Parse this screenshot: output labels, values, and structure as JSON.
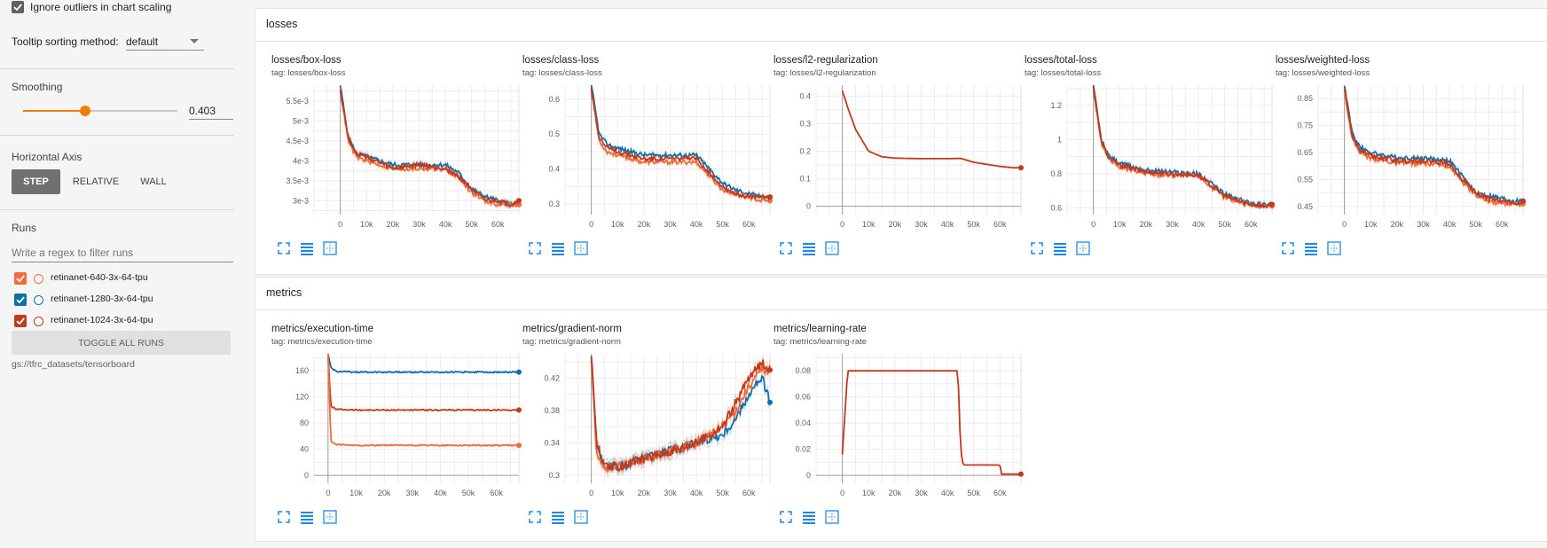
{
  "sidebar": {
    "ignore_outliers_label": "Ignore outliers in chart scaling",
    "tooltip_label": "Tooltip sorting method:",
    "tooltip_value": "default",
    "smoothing_label": "Smoothing",
    "smoothing_value": "0.403",
    "smoothing_fraction": 0.403,
    "horizontal_axis_label": "Horizontal Axis",
    "axis_buttons": [
      "STEP",
      "RELATIVE",
      "WALL"
    ],
    "runs_label": "Runs",
    "runs_filter_placeholder": "Write a regex to filter runs",
    "runs": [
      {
        "name": "retinanet-640-3x-64-tpu",
        "color": "#f26b3a"
      },
      {
        "name": "retinanet-1280-3x-64-tpu",
        "color": "#0e6fad"
      },
      {
        "name": "retinanet-1024-3x-64-tpu",
        "color": "#c13a1c"
      }
    ],
    "toggle_all_label": "TOGGLE ALL RUNS",
    "logdir": "gs://tfrc_datasets/tensorboard",
    "accent_color": "#f57c00"
  },
  "sections": [
    {
      "name": "losses"
    },
    {
      "name": "metrics"
    }
  ],
  "chart_data": [
    {
      "type": "line",
      "title": "losses/box-loss",
      "tag": "tag: losses/box-loss",
      "xticks": [
        "0",
        "10k",
        "20k",
        "30k",
        "40k",
        "50k",
        "60k"
      ],
      "xlim": [
        -10000,
        68000
      ],
      "yticks": [
        "3e-3",
        "3.5e-3",
        "4e-3",
        "4.5e-3",
        "5e-3",
        "5.5e-3"
      ],
      "ytick_values": [
        0.003,
        0.0035,
        0.004,
        0.0045,
        0.005,
        0.0055
      ],
      "ylim": [
        0.00265,
        0.0059
      ],
      "series": [
        {
          "color": "#0e6fad",
          "x": [
            0,
            3000,
            6000,
            10000,
            20000,
            30000,
            40000,
            45000,
            50000,
            55000,
            60000,
            65000,
            68000
          ],
          "y": [
            0.0059,
            0.0046,
            0.0042,
            0.0041,
            0.0039,
            0.0039,
            0.0039,
            0.0037,
            0.0033,
            0.0031,
            0.003,
            0.0029,
            0.0029
          ]
        },
        {
          "color": "#f26b3a",
          "x": [
            0,
            3000,
            6000,
            10000,
            20000,
            30000,
            40000,
            45000,
            50000,
            55000,
            60000,
            65000,
            68000
          ],
          "y": [
            0.0058,
            0.0045,
            0.0041,
            0.004,
            0.0038,
            0.0038,
            0.0038,
            0.0036,
            0.0032,
            0.003,
            0.0029,
            0.0029,
            0.0029
          ]
        },
        {
          "color": "#c13a1c",
          "x": [
            0,
            3000,
            6000,
            10000,
            20000,
            30000,
            40000,
            45000,
            50000,
            55000,
            60000,
            65000,
            68000
          ],
          "y": [
            0.0058,
            0.0046,
            0.0042,
            0.0041,
            0.0038,
            0.0039,
            0.0038,
            0.0036,
            0.0033,
            0.003,
            0.003,
            0.0029,
            0.003
          ]
        }
      ]
    },
    {
      "type": "line",
      "title": "losses/class-loss",
      "tag": "tag: losses/class-loss",
      "xticks": [
        "0",
        "10k",
        "20k",
        "30k",
        "40k",
        "50k",
        "60k"
      ],
      "xlim": [
        -10000,
        68000
      ],
      "yticks": [
        "0.3",
        "0.4",
        "0.5",
        "0.6"
      ],
      "ytick_values": [
        0.3,
        0.4,
        0.5,
        0.6
      ],
      "ylim": [
        0.27,
        0.64
      ],
      "series": [
        {
          "color": "#0e6fad",
          "x": [
            0,
            3000,
            6000,
            10000,
            20000,
            30000,
            40000,
            45000,
            50000,
            55000,
            60000,
            65000,
            68000
          ],
          "y": [
            0.64,
            0.5,
            0.47,
            0.46,
            0.44,
            0.44,
            0.44,
            0.4,
            0.36,
            0.34,
            0.33,
            0.32,
            0.32
          ]
        },
        {
          "color": "#f26b3a",
          "x": [
            0,
            3000,
            6000,
            10000,
            20000,
            30000,
            40000,
            45000,
            50000,
            55000,
            60000,
            65000,
            68000
          ],
          "y": [
            0.63,
            0.48,
            0.45,
            0.44,
            0.42,
            0.42,
            0.42,
            0.38,
            0.34,
            0.33,
            0.32,
            0.31,
            0.31
          ]
        },
        {
          "color": "#c13a1c",
          "x": [
            0,
            3000,
            6000,
            10000,
            20000,
            30000,
            40000,
            45000,
            50000,
            55000,
            60000,
            65000,
            68000
          ],
          "y": [
            0.63,
            0.49,
            0.46,
            0.45,
            0.43,
            0.43,
            0.43,
            0.39,
            0.35,
            0.33,
            0.32,
            0.32,
            0.32
          ]
        }
      ]
    },
    {
      "type": "line",
      "title": "losses/l2-regularization",
      "tag": "tag: losses/l2-regularization",
      "xticks": [
        "0",
        "10k",
        "20k",
        "30k",
        "40k",
        "50k",
        "60k"
      ],
      "xlim": [
        -10000,
        68000
      ],
      "yticks": [
        "0",
        "0.1",
        "0.2",
        "0.3",
        "0.4"
      ],
      "ytick_values": [
        0,
        0.1,
        0.2,
        0.3,
        0.4
      ],
      "ylim": [
        -0.03,
        0.44
      ],
      "series": [
        {
          "color": "#c13a1c",
          "x": [
            0,
            2000,
            5000,
            10000,
            15000,
            20000,
            30000,
            40000,
            45000,
            50000,
            60000,
            65000,
            68000
          ],
          "y": [
            0.42,
            0.36,
            0.28,
            0.2,
            0.18,
            0.175,
            0.173,
            0.173,
            0.174,
            0.16,
            0.145,
            0.14,
            0.14
          ]
        }
      ]
    },
    {
      "type": "line",
      "title": "losses/total-loss",
      "tag": "tag: losses/total-loss",
      "xticks": [
        "0",
        "10k",
        "20k",
        "30k",
        "40k",
        "50k",
        "60k"
      ],
      "xlim": [
        -10000,
        68000
      ],
      "yticks": [
        "0.6",
        "0.8",
        "1",
        "1.2"
      ],
      "ytick_values": [
        0.6,
        0.8,
        1,
        1.2
      ],
      "ylim": [
        0.56,
        1.32
      ],
      "series": [
        {
          "color": "#0e6fad",
          "x": [
            0,
            3000,
            6000,
            10000,
            20000,
            30000,
            40000,
            45000,
            50000,
            55000,
            60000,
            65000,
            68000
          ],
          "y": [
            1.32,
            1.0,
            0.9,
            0.86,
            0.82,
            0.81,
            0.8,
            0.74,
            0.68,
            0.65,
            0.63,
            0.62,
            0.62
          ]
        },
        {
          "color": "#f26b3a",
          "x": [
            0,
            3000,
            6000,
            10000,
            20000,
            30000,
            40000,
            45000,
            50000,
            55000,
            60000,
            65000,
            68000
          ],
          "y": [
            1.3,
            0.98,
            0.88,
            0.84,
            0.8,
            0.79,
            0.79,
            0.72,
            0.66,
            0.64,
            0.62,
            0.61,
            0.61
          ]
        },
        {
          "color": "#c13a1c",
          "x": [
            0,
            3000,
            6000,
            10000,
            20000,
            30000,
            40000,
            45000,
            50000,
            55000,
            60000,
            65000,
            68000
          ],
          "y": [
            1.31,
            0.99,
            0.89,
            0.85,
            0.81,
            0.8,
            0.79,
            0.73,
            0.67,
            0.64,
            0.62,
            0.61,
            0.62
          ]
        }
      ]
    },
    {
      "type": "line",
      "title": "losses/weighted-loss",
      "tag": "tag: losses/weighted-loss",
      "xticks": [
        "0",
        "10k",
        "20k",
        "30k",
        "40k",
        "50k",
        "60k"
      ],
      "xlim": [
        -10000,
        68000
      ],
      "yticks": [
        "0.45",
        "0.55",
        "0.65",
        "0.75",
        "0.85"
      ],
      "ytick_values": [
        0.45,
        0.55,
        0.65,
        0.75,
        0.85
      ],
      "ylim": [
        0.42,
        0.9
      ],
      "series": [
        {
          "color": "#0e6fad",
          "x": [
            0,
            3000,
            6000,
            10000,
            20000,
            30000,
            40000,
            45000,
            50000,
            55000,
            60000,
            65000,
            68000
          ],
          "y": [
            0.9,
            0.72,
            0.67,
            0.65,
            0.63,
            0.63,
            0.62,
            0.56,
            0.5,
            0.49,
            0.48,
            0.47,
            0.47
          ]
        },
        {
          "color": "#f26b3a",
          "x": [
            0,
            3000,
            6000,
            10000,
            20000,
            30000,
            40000,
            45000,
            50000,
            55000,
            60000,
            65000,
            68000
          ],
          "y": [
            0.88,
            0.7,
            0.65,
            0.63,
            0.61,
            0.61,
            0.6,
            0.54,
            0.49,
            0.47,
            0.46,
            0.46,
            0.46
          ]
        },
        {
          "color": "#c13a1c",
          "x": [
            0,
            3000,
            6000,
            10000,
            20000,
            30000,
            40000,
            45000,
            50000,
            55000,
            60000,
            65000,
            68000
          ],
          "y": [
            0.89,
            0.71,
            0.66,
            0.64,
            0.62,
            0.62,
            0.61,
            0.55,
            0.5,
            0.48,
            0.47,
            0.46,
            0.47
          ]
        }
      ]
    },
    {
      "type": "line",
      "title": "metrics/execution-time",
      "tag": "tag: metrics/execution-time",
      "xticks": [
        "0",
        "10k",
        "20k",
        "30k",
        "40k",
        "50k",
        "60k"
      ],
      "xlim": [
        -5000,
        68000
      ],
      "yticks": [
        "0",
        "40",
        "80",
        "120",
        "160"
      ],
      "ytick_values": [
        0,
        40,
        80,
        120,
        160
      ],
      "ylim": [
        -12,
        186
      ],
      "series": [
        {
          "color": "#0e6fad",
          "x": [
            0,
            1000,
            3000,
            10000,
            30000,
            50000,
            68000
          ],
          "y": [
            186,
            165,
            159,
            158,
            158,
            158,
            158
          ]
        },
        {
          "color": "#c13a1c",
          "x": [
            0,
            1000,
            3000,
            10000,
            30000,
            50000,
            68000
          ],
          "y": [
            186,
            106,
            101,
            100,
            100,
            100,
            100
          ]
        },
        {
          "color": "#f26b3a",
          "x": [
            0,
            1000,
            3000,
            10000,
            30000,
            50000,
            68000
          ],
          "y": [
            186,
            52,
            47,
            46,
            46,
            46,
            46
          ]
        }
      ]
    },
    {
      "type": "line",
      "title": "metrics/gradient-norm",
      "tag": "tag: metrics/gradient-norm",
      "xticks": [
        "0",
        "10k",
        "20k",
        "30k",
        "40k",
        "50k",
        "60k"
      ],
      "xlim": [
        -10000,
        68000
      ],
      "yticks": [
        "0.3",
        "0.34",
        "0.38",
        "0.42"
      ],
      "ytick_values": [
        0.3,
        0.34,
        0.38,
        0.42
      ],
      "ylim": [
        0.29,
        0.45
      ],
      "series": [
        {
          "color": "#0e6fad",
          "x": [
            0,
            2000,
            5000,
            10000,
            20000,
            30000,
            40000,
            50000,
            55000,
            60000,
            65000,
            68000
          ],
          "y": [
            0.45,
            0.34,
            0.31,
            0.31,
            0.32,
            0.33,
            0.34,
            0.35,
            0.37,
            0.4,
            0.42,
            0.39
          ]
        },
        {
          "color": "#f26b3a",
          "x": [
            0,
            2000,
            5000,
            10000,
            20000,
            30000,
            40000,
            50000,
            55000,
            60000,
            65000,
            68000
          ],
          "y": [
            0.44,
            0.33,
            0.31,
            0.31,
            0.32,
            0.33,
            0.34,
            0.36,
            0.38,
            0.41,
            0.43,
            0.43
          ]
        },
        {
          "color": "#c13a1c",
          "x": [
            0,
            2000,
            5000,
            10000,
            20000,
            30000,
            40000,
            50000,
            55000,
            60000,
            65000,
            68000
          ],
          "y": [
            0.45,
            0.34,
            0.31,
            0.31,
            0.32,
            0.33,
            0.34,
            0.36,
            0.39,
            0.42,
            0.44,
            0.43
          ]
        }
      ]
    },
    {
      "type": "line",
      "title": "metrics/learning-rate",
      "tag": "tag: metrics/learning-rate",
      "xticks": [
        "0",
        "10k",
        "20k",
        "30k",
        "40k",
        "50k",
        "60k"
      ],
      "xlim": [
        -10000,
        68000
      ],
      "yticks": [
        "0",
        "0.02",
        "0.04",
        "0.06",
        "0.08"
      ],
      "ytick_values": [
        0,
        0.02,
        0.04,
        0.06,
        0.08
      ],
      "ylim": [
        -0.006,
        0.093
      ],
      "series": [
        {
          "color": "#c13a1c",
          "x": [
            0,
            2000,
            44000,
            45000,
            46000,
            60000,
            60500,
            68000
          ],
          "y": [
            0.016,
            0.08,
            0.08,
            0.02,
            0.008,
            0.008,
            0.001,
            0.001
          ]
        }
      ]
    }
  ]
}
